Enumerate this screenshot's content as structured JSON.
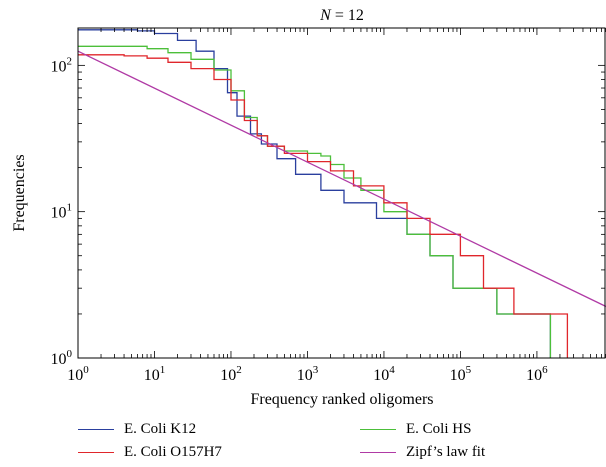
{
  "chart_data": {
    "type": "line",
    "title": "N = 12",
    "title_var": "N",
    "title_rest": " = 12",
    "xlabel": "Frequency ranked oligomers",
    "ylabel": "Frequencies",
    "x_scale": "log",
    "y_scale": "log",
    "xlim": [
      1,
      8000000
    ],
    "ylim": [
      1,
      180
    ],
    "grid": false,
    "legend_position": "bottom",
    "x_ticks": [
      {
        "value": 1,
        "base": "10",
        "exp": "0"
      },
      {
        "value": 10,
        "base": "10",
        "exp": "1"
      },
      {
        "value": 100,
        "base": "10",
        "exp": "2"
      },
      {
        "value": 1000,
        "base": "10",
        "exp": "3"
      },
      {
        "value": 10000,
        "base": "10",
        "exp": "4"
      },
      {
        "value": 100000,
        "base": "10",
        "exp": "5"
      },
      {
        "value": 1000000,
        "base": "10",
        "exp": "6"
      }
    ],
    "y_ticks": [
      {
        "value": 1,
        "base": "10",
        "exp": "0"
      },
      {
        "value": 10,
        "base": "10",
        "exp": "1"
      },
      {
        "value": 100,
        "base": "10",
        "exp": "2"
      }
    ],
    "series": [
      {
        "name": "E. Coli K12",
        "color": "#2a3f9e",
        "step": true,
        "points": [
          [
            1,
            175
          ],
          [
            3,
            175
          ],
          [
            6,
            172
          ],
          [
            10,
            165
          ],
          [
            20,
            148
          ],
          [
            35,
            125
          ],
          [
            60,
            95
          ],
          [
            90,
            65
          ],
          [
            120,
            45
          ],
          [
            180,
            34
          ],
          [
            250,
            29
          ],
          [
            400,
            23
          ],
          [
            700,
            18
          ],
          [
            1500,
            14
          ],
          [
            3000,
            11.5
          ],
          [
            8000,
            9
          ],
          [
            20000,
            7
          ],
          [
            40000,
            5
          ],
          [
            80000,
            3
          ],
          [
            300000,
            2
          ],
          [
            1500000,
            1
          ]
        ]
      },
      {
        "name": "E. Coli HS",
        "color": "#4cbf3a",
        "step": true,
        "points": [
          [
            1,
            135
          ],
          [
            4,
            135
          ],
          [
            8,
            130
          ],
          [
            15,
            122
          ],
          [
            30,
            110
          ],
          [
            60,
            93
          ],
          [
            100,
            67
          ],
          [
            150,
            44
          ],
          [
            220,
            33
          ],
          [
            300,
            28
          ],
          [
            500,
            26
          ],
          [
            1000,
            25
          ],
          [
            1500,
            24
          ],
          [
            2000,
            21
          ],
          [
            3000,
            17
          ],
          [
            5000,
            14
          ],
          [
            10000,
            10
          ],
          [
            20000,
            7
          ],
          [
            40000,
            5
          ],
          [
            80000,
            3
          ],
          [
            300000,
            2
          ],
          [
            1500000,
            1
          ]
        ]
      },
      {
        "name": "E. Coli O157H7",
        "color": "#e0262b",
        "step": true,
        "points": [
          [
            1,
            118
          ],
          [
            4,
            116
          ],
          [
            8,
            112
          ],
          [
            15,
            105
          ],
          [
            30,
            95
          ],
          [
            60,
            80
          ],
          [
            100,
            58
          ],
          [
            150,
            42
          ],
          [
            220,
            33
          ],
          [
            300,
            28
          ],
          [
            500,
            25
          ],
          [
            1000,
            22
          ],
          [
            2000,
            19
          ],
          [
            4000,
            15
          ],
          [
            10000,
            11.5
          ],
          [
            20000,
            9
          ],
          [
            40000,
            7
          ],
          [
            100000,
            5
          ],
          [
            200000,
            3
          ],
          [
            500000,
            2
          ],
          [
            2500000,
            1
          ]
        ]
      },
      {
        "name": "Zipf's law fit",
        "color": "#b03aa5",
        "step": false,
        "points": [
          [
            1,
            125
          ],
          [
            8000000,
            2.25
          ]
        ]
      }
    ]
  },
  "legend": {
    "items": [
      {
        "label": "E. Coli K12",
        "color": "#2a3f9e"
      },
      {
        "label": "E. Coli HS",
        "color": "#4cbf3a"
      },
      {
        "label": "E. Coli O157H7",
        "color": "#e0262b"
      },
      {
        "label": "Zipf’s law fit",
        "color": "#b03aa5"
      }
    ]
  }
}
